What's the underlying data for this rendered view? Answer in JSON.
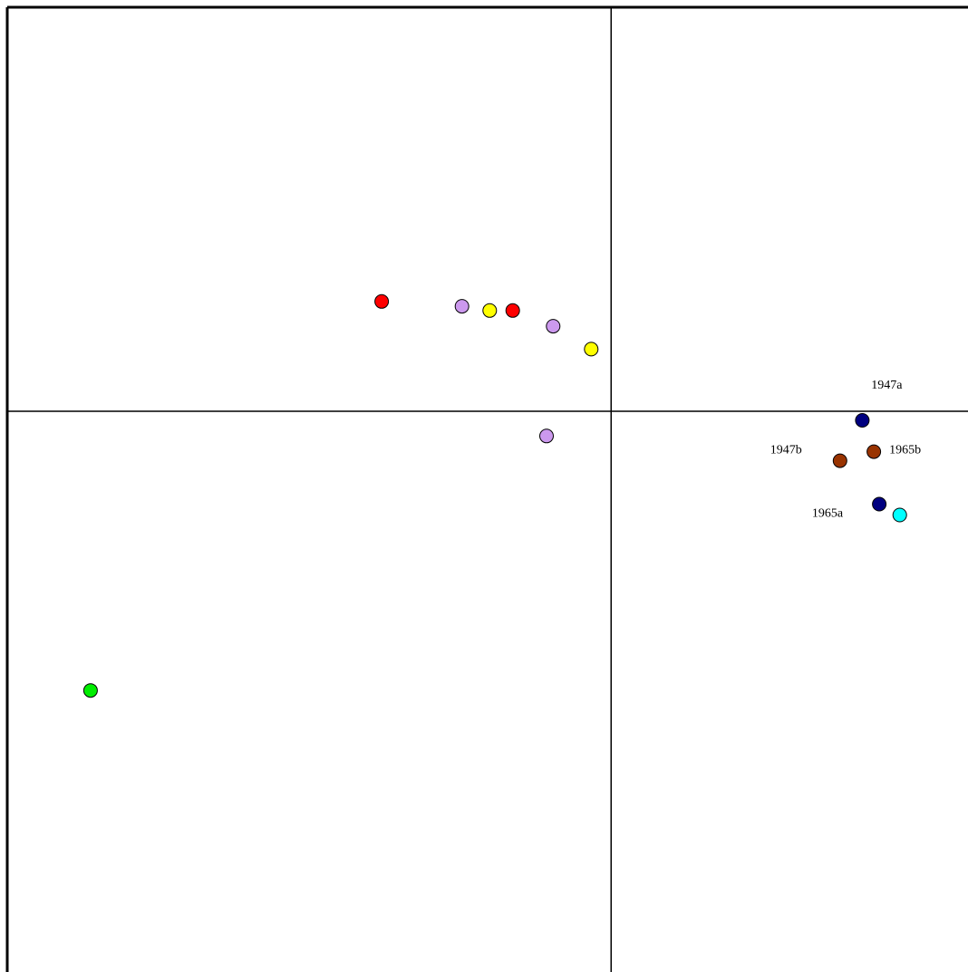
{
  "chart_data": {
    "type": "scatter",
    "title": "",
    "xlabel": "",
    "ylabel": "",
    "axis_lines": {
      "x": 0,
      "y": 0
    },
    "xlim": [
      -100,
      60
    ],
    "ylim": [
      -93,
      67
    ],
    "grid": false,
    "points": [
      {
        "x": -38,
        "y": 18.2,
        "color": "#ff0000",
        "label": ""
      },
      {
        "x": -24.7,
        "y": 17.4,
        "color": "#cc99ee",
        "label": ""
      },
      {
        "x": -20.1,
        "y": 16.7,
        "color": "#ffff00",
        "label": ""
      },
      {
        "x": -16.3,
        "y": 16.7,
        "color": "#ff0000",
        "label": ""
      },
      {
        "x": -9.6,
        "y": 14.1,
        "color": "#cc99ee",
        "label": ""
      },
      {
        "x": -3.3,
        "y": 10.3,
        "color": "#ffff00",
        "label": ""
      },
      {
        "x": -10.7,
        "y": -4.1,
        "color": "#cc99ee",
        "label": ""
      },
      {
        "x": -86.2,
        "y": -46.3,
        "color": "#00ee00",
        "label": ""
      },
      {
        "x": 41.6,
        "y": -1.5,
        "color": "#000080",
        "label": "1947a"
      },
      {
        "x": 37.9,
        "y": -8.2,
        "color": "#993300",
        "label": "1947b"
      },
      {
        "x": 43.5,
        "y": -6.7,
        "color": "#993300",
        "label": "1965b"
      },
      {
        "x": 44.4,
        "y": -15.4,
        "color": "#000080",
        "label": "1965a"
      },
      {
        "x": 47.8,
        "y": -17.2,
        "color": "#00ffff",
        "label": ""
      }
    ]
  }
}
